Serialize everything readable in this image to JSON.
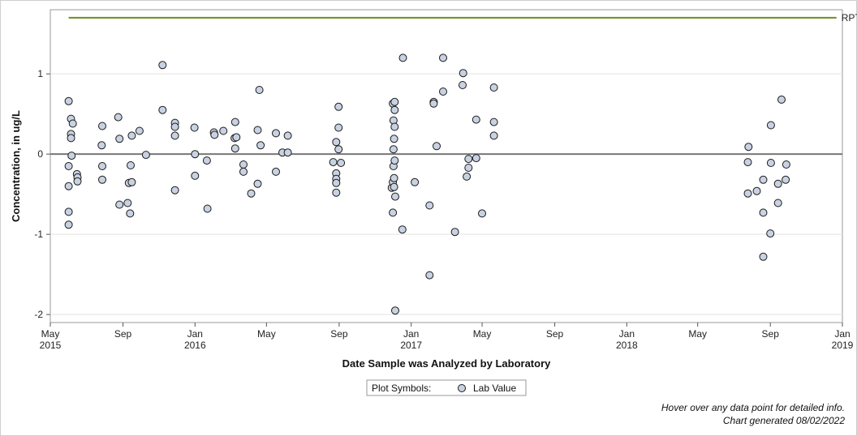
{
  "chart_data": {
    "type": "scatter",
    "title": "",
    "xlabel": "Date Sample was Analyzed by Laboratory",
    "ylabel": "Concentration, in ug/L",
    "xlim": [
      "2015-05-01",
      "2019-01-01"
    ],
    "ylim": [
      -2.1,
      1.8
    ],
    "y_ticks": [
      -2,
      -1,
      0,
      1
    ],
    "x_ticks": [
      {
        "date": "2015-05-01",
        "label": "May",
        "year": "2015"
      },
      {
        "date": "2015-09-01",
        "label": "Sep",
        "year": ""
      },
      {
        "date": "2016-01-01",
        "label": "Jan",
        "year": "2016"
      },
      {
        "date": "2016-05-01",
        "label": "May",
        "year": ""
      },
      {
        "date": "2016-09-01",
        "label": "Sep",
        "year": ""
      },
      {
        "date": "2017-01-01",
        "label": "Jan",
        "year": "2017"
      },
      {
        "date": "2017-05-01",
        "label": "May",
        "year": ""
      },
      {
        "date": "2017-09-01",
        "label": "Sep",
        "year": ""
      },
      {
        "date": "2018-01-01",
        "label": "Jan",
        "year": "2018"
      },
      {
        "date": "2018-05-01",
        "label": "May",
        "year": ""
      },
      {
        "date": "2018-09-01",
        "label": "Sep",
        "year": ""
      },
      {
        "date": "2019-01-01",
        "label": "Jan",
        "year": "2019"
      }
    ],
    "grid": "horizontal",
    "zero_line": 0,
    "reference_line": {
      "name": "RPT Level",
      "y": 1.7,
      "x_start": "2015-06-01",
      "x_end": "2018-12-22",
      "color": "#6b8e23"
    },
    "legend": {
      "title": "Plot Symbols:",
      "entries": [
        "Lab Value"
      ],
      "placement": "bottom"
    },
    "marker_fill": "#c8d2e2",
    "marker_stroke": "#1a1a1a",
    "series": [
      {
        "name": "Lab Value",
        "points": [
          {
            "x": "2015-06-01",
            "y": 0.66
          },
          {
            "x": "2015-06-01",
            "y": -0.15
          },
          {
            "x": "2015-06-01",
            "y": -0.4
          },
          {
            "x": "2015-06-01",
            "y": -0.72
          },
          {
            "x": "2015-06-01",
            "y": -0.88
          },
          {
            "x": "2015-06-05",
            "y": 0.44
          },
          {
            "x": "2015-06-05",
            "y": 0.25
          },
          {
            "x": "2015-06-05",
            "y": 0.2
          },
          {
            "x": "2015-06-06",
            "y": -0.02
          },
          {
            "x": "2015-06-08",
            "y": 0.38
          },
          {
            "x": "2015-06-15",
            "y": -0.25
          },
          {
            "x": "2015-06-16",
            "y": -0.29
          },
          {
            "x": "2015-06-16",
            "y": -0.34
          },
          {
            "x": "2015-07-27",
            "y": 0.11
          },
          {
            "x": "2015-07-28",
            "y": 0.35
          },
          {
            "x": "2015-07-28",
            "y": -0.15
          },
          {
            "x": "2015-07-28",
            "y": -0.32
          },
          {
            "x": "2015-08-24",
            "y": 0.46
          },
          {
            "x": "2015-08-26",
            "y": 0.19
          },
          {
            "x": "2015-08-26",
            "y": -0.63
          },
          {
            "x": "2015-09-09",
            "y": -0.61
          },
          {
            "x": "2015-09-11",
            "y": -0.36
          },
          {
            "x": "2015-09-13",
            "y": -0.74
          },
          {
            "x": "2015-09-14",
            "y": -0.14
          },
          {
            "x": "2015-09-16",
            "y": 0.23
          },
          {
            "x": "2015-09-16",
            "y": -0.35
          },
          {
            "x": "2015-09-29",
            "y": 0.29
          },
          {
            "x": "2015-10-10",
            "y": -0.01
          },
          {
            "x": "2015-11-07",
            "y": 1.11
          },
          {
            "x": "2015-11-07",
            "y": 0.55
          },
          {
            "x": "2015-11-28",
            "y": 0.39
          },
          {
            "x": "2015-11-28",
            "y": 0.34
          },
          {
            "x": "2015-11-28",
            "y": 0.23
          },
          {
            "x": "2015-11-28",
            "y": -0.45
          },
          {
            "x": "2015-12-31",
            "y": 0.33
          },
          {
            "x": "2016-01-01",
            "y": 0.0
          },
          {
            "x": "2016-01-01",
            "y": -0.27
          },
          {
            "x": "2016-01-21",
            "y": -0.08
          },
          {
            "x": "2016-01-22",
            "y": -0.68
          },
          {
            "x": "2016-02-02",
            "y": 0.27
          },
          {
            "x": "2016-02-03",
            "y": 0.24
          },
          {
            "x": "2016-02-18",
            "y": 0.29
          },
          {
            "x": "2016-03-08",
            "y": 0.2
          },
          {
            "x": "2016-03-09",
            "y": 0.07
          },
          {
            "x": "2016-03-09",
            "y": 0.4
          },
          {
            "x": "2016-03-11",
            "y": 0.21
          },
          {
            "x": "2016-03-23",
            "y": -0.13
          },
          {
            "x": "2016-03-23",
            "y": -0.22
          },
          {
            "x": "2016-04-05",
            "y": -0.49
          },
          {
            "x": "2016-04-16",
            "y": 0.3
          },
          {
            "x": "2016-04-16",
            "y": -0.37
          },
          {
            "x": "2016-04-19",
            "y": 0.8
          },
          {
            "x": "2016-04-21",
            "y": 0.11
          },
          {
            "x": "2016-05-17",
            "y": 0.26
          },
          {
            "x": "2016-05-17",
            "y": -0.22
          },
          {
            "x": "2016-05-28",
            "y": 0.02
          },
          {
            "x": "2016-06-06",
            "y": 0.23
          },
          {
            "x": "2016-06-06",
            "y": 0.02
          },
          {
            "x": "2016-08-22",
            "y": -0.1
          },
          {
            "x": "2016-08-27",
            "y": 0.15
          },
          {
            "x": "2016-08-27",
            "y": -0.24
          },
          {
            "x": "2016-08-27",
            "y": -0.31
          },
          {
            "x": "2016-08-27",
            "y": -0.36
          },
          {
            "x": "2016-08-27",
            "y": -0.48
          },
          {
            "x": "2016-08-31",
            "y": 0.59
          },
          {
            "x": "2016-08-31",
            "y": 0.33
          },
          {
            "x": "2016-08-31",
            "y": 0.06
          },
          {
            "x": "2016-09-04",
            "y": -0.11
          },
          {
            "x": "2016-11-29",
            "y": -0.42
          },
          {
            "x": "2016-12-01",
            "y": 0.63
          },
          {
            "x": "2016-12-01",
            "y": -0.35
          },
          {
            "x": "2016-12-01",
            "y": -0.73
          },
          {
            "x": "2016-12-02",
            "y": 0.42
          },
          {
            "x": "2016-12-02",
            "y": 0.06
          },
          {
            "x": "2016-12-02",
            "y": -0.15
          },
          {
            "x": "2016-12-04",
            "y": 0.65
          },
          {
            "x": "2016-12-04",
            "y": 0.55
          },
          {
            "x": "2016-12-04",
            "y": 0.34
          },
          {
            "x": "2016-12-03",
            "y": 0.19
          },
          {
            "x": "2016-12-04",
            "y": -0.08
          },
          {
            "x": "2016-12-03",
            "y": -0.3
          },
          {
            "x": "2016-12-03",
            "y": -0.41
          },
          {
            "x": "2016-12-05",
            "y": -0.53
          },
          {
            "x": "2016-12-05",
            "y": -1.95
          },
          {
            "x": "2016-12-18",
            "y": 1.2
          },
          {
            "x": "2016-12-17",
            "y": -0.94
          },
          {
            "x": "2017-01-07",
            "y": -0.35
          },
          {
            "x": "2017-02-01",
            "y": -0.64
          },
          {
            "x": "2017-02-08",
            "y": 0.65
          },
          {
            "x": "2017-02-08",
            "y": 0.63
          },
          {
            "x": "2017-02-01",
            "y": -1.51
          },
          {
            "x": "2017-02-13",
            "y": 0.1
          },
          {
            "x": "2017-02-24",
            "y": 1.2
          },
          {
            "x": "2017-02-24",
            "y": 0.78
          },
          {
            "x": "2017-03-16",
            "y": -0.97
          },
          {
            "x": "2017-03-30",
            "y": 1.01
          },
          {
            "x": "2017-03-29",
            "y": 0.86
          },
          {
            "x": "2017-04-05",
            "y": -0.28
          },
          {
            "x": "2017-04-08",
            "y": -0.06
          },
          {
            "x": "2017-04-08",
            "y": -0.17
          },
          {
            "x": "2017-04-21",
            "y": 0.43
          },
          {
            "x": "2017-04-21",
            "y": -0.05
          },
          {
            "x": "2017-05-01",
            "y": -0.74
          },
          {
            "x": "2017-05-21",
            "y": 0.83
          },
          {
            "x": "2017-05-21",
            "y": 0.4
          },
          {
            "x": "2017-05-21",
            "y": 0.23
          },
          {
            "x": "2018-07-26",
            "y": 0.09
          },
          {
            "x": "2018-07-25",
            "y": -0.1
          },
          {
            "x": "2018-07-25",
            "y": -0.49
          },
          {
            "x": "2018-08-09",
            "y": -0.46
          },
          {
            "x": "2018-08-20",
            "y": -0.32
          },
          {
            "x": "2018-08-20",
            "y": -0.73
          },
          {
            "x": "2018-08-20",
            "y": -1.28
          },
          {
            "x": "2018-09-02",
            "y": 0.36
          },
          {
            "x": "2018-09-02",
            "y": -0.11
          },
          {
            "x": "2018-09-01",
            "y": -0.99
          },
          {
            "x": "2018-09-14",
            "y": -0.37
          },
          {
            "x": "2018-09-14",
            "y": -0.61
          },
          {
            "x": "2018-09-20",
            "y": 0.68
          },
          {
            "x": "2018-09-28",
            "y": -0.13
          },
          {
            "x": "2018-09-27",
            "y": -0.32
          }
        ]
      }
    ]
  },
  "footnotes": [
    "Hover over any data point for detailed info.",
    "Chart generated 08/02/2022"
  ]
}
